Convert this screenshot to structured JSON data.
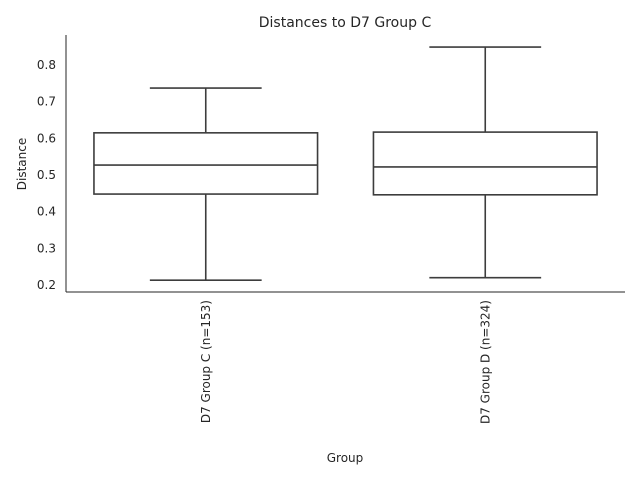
{
  "chart_data": {
    "type": "box",
    "title": "Distances to D7 Group C",
    "xlabel": "Group",
    "ylabel": "Distance",
    "ylim": [
      0.18,
      0.88
    ],
    "yticks": [
      "0.2",
      "0.3",
      "0.4",
      "0.5",
      "0.6",
      "0.7",
      "0.8"
    ],
    "grid": false,
    "categories": [
      "D7 Group C (n=153)",
      "D7 Group D (n=324)"
    ],
    "boxes": [
      {
        "category": "D7 Group C (n=153)",
        "whisker_low": 0.213,
        "q1": 0.448,
        "median": 0.527,
        "q3": 0.615,
        "whisker_high": 0.737
      },
      {
        "category": "D7 Group D (n=324)",
        "whisker_low": 0.22,
        "q1": 0.446,
        "median": 0.522,
        "q3": 0.617,
        "whisker_high": 0.849
      }
    ]
  }
}
